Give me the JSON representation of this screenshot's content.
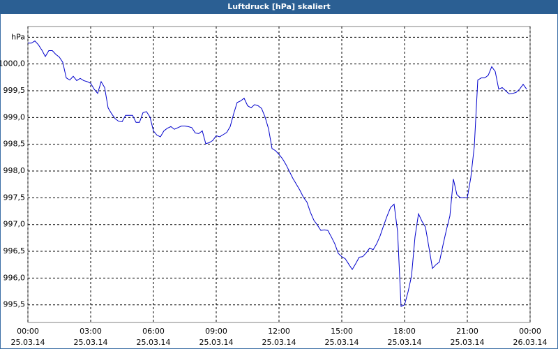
{
  "chart_data": {
    "type": "line",
    "title": "Luftdruck [hPa] skaliert",
    "color": "#0000cc",
    "grid": true,
    "x": [
      0,
      10,
      20,
      30,
      40,
      50,
      60,
      70,
      80,
      90,
      100,
      110,
      120,
      130,
      140,
      150,
      160,
      170,
      180,
      190,
      200,
      210,
      220,
      230,
      240,
      250,
      260,
      270,
      280,
      290,
      300,
      310,
      320,
      330,
      340,
      350,
      360,
      370,
      380,
      390,
      400,
      410,
      420,
      430,
      440,
      450,
      460,
      470,
      480,
      490,
      500,
      510,
      520,
      530,
      540,
      550,
      560,
      570,
      580,
      590,
      600,
      610,
      620,
      630,
      640,
      650,
      660,
      670,
      680,
      690,
      700,
      710,
      720,
      730,
      740,
      750,
      760,
      770,
      780,
      790,
      800,
      810,
      820,
      830,
      840,
      850,
      860,
      870,
      880,
      890,
      900,
      910,
      920,
      930,
      940,
      950,
      960,
      970,
      980,
      990,
      1000,
      1010,
      1020,
      1030,
      1040,
      1050,
      1060,
      1070,
      1080,
      1090,
      1100,
      1110,
      1120,
      1130,
      1140,
      1150,
      1160,
      1170,
      1180,
      1190,
      1200,
      1210,
      1220,
      1230,
      1240,
      1250,
      1260,
      1270,
      1280,
      1290,
      1300,
      1310,
      1320,
      1330,
      1340,
      1350,
      1360,
      1370,
      1380,
      1390,
      1400,
      1410,
      1420,
      1430
    ],
    "values": [
      1000.39,
      1000.39,
      1000.43,
      1000.36,
      1000.26,
      1000.14,
      1000.25,
      1000.25,
      1000.18,
      1000.13,
      1000.03,
      999.74,
      999.7,
      999.77,
      999.69,
      999.73,
      999.69,
      999.67,
      999.64,
      999.53,
      999.45,
      999.67,
      999.56,
      999.18,
      999.07,
      998.98,
      998.93,
      998.92,
      999.04,
      999.04,
      999.04,
      998.91,
      998.91,
      999.09,
      999.11,
      999.01,
      998.75,
      998.67,
      998.64,
      998.75,
      998.8,
      998.83,
      998.78,
      998.81,
      998.84,
      998.84,
      998.83,
      998.81,
      998.71,
      998.7,
      998.75,
      998.51,
      998.53,
      998.57,
      998.66,
      998.64,
      998.68,
      998.72,
      998.83,
      999.07,
      999.28,
      999.31,
      999.36,
      999.22,
      999.18,
      999.24,
      999.22,
      999.17,
      999.01,
      998.79,
      998.42,
      998.38,
      998.31,
      998.23,
      998.12,
      997.99,
      997.86,
      997.75,
      997.64,
      997.51,
      997.42,
      997.23,
      997.08,
      996.99,
      996.89,
      996.9,
      996.89,
      996.77,
      996.64,
      996.46,
      996.4,
      996.36,
      996.26,
      996.16,
      996.27,
      996.39,
      996.4,
      996.47,
      996.56,
      996.53,
      996.64,
      996.79,
      996.98,
      997.16,
      997.32,
      997.38,
      996.87,
      995.47,
      995.5,
      995.74,
      996.04,
      996.77,
      997.2,
      997.06,
      996.95,
      996.57,
      996.18,
      996.25,
      996.3,
      996.61,
      996.9,
      997.16,
      997.85,
      997.56,
      997.5,
      997.5,
      997.5,
      997.88,
      998.46,
      999.7,
      999.74,
      999.74,
      999.79,
      999.95,
      999.86,
      999.53,
      999.56,
      999.5,
      999.44,
      999.45,
      999.47,
      999.53,
      999.62,
      999.53
    ],
    "xlim": [
      0,
      1440
    ],
    "xticks": [
      {
        "value": 0,
        "label": "00:00",
        "date": "25.03.14"
      },
      {
        "value": 180,
        "label": "03:00",
        "date": "25.03.14"
      },
      {
        "value": 360,
        "label": "06:00",
        "date": "25.03.14"
      },
      {
        "value": 540,
        "label": "09:00",
        "date": "25.03.14"
      },
      {
        "value": 720,
        "label": "12:00",
        "date": "25.03.14"
      },
      {
        "value": 900,
        "label": "15:00",
        "date": "25.03.14"
      },
      {
        "value": 1080,
        "label": "18:00",
        "date": "25.03.14"
      },
      {
        "value": 1260,
        "label": "21:00",
        "date": "25.03.14"
      },
      {
        "value": 1440,
        "label": "00:00",
        "date": "26.03.14"
      }
    ],
    "ylim": [
      995.17,
      1000.7
    ],
    "yticks": [
      {
        "value": 995.5,
        "label": "995,5"
      },
      {
        "value": 996,
        "label": "996,0"
      },
      {
        "value": 996.5,
        "label": "996,5"
      },
      {
        "value": 997,
        "label": "997,0"
      },
      {
        "value": 997.5,
        "label": "997,5"
      },
      {
        "value": 998,
        "label": "998,0"
      },
      {
        "value": 998.5,
        "label": "998,5"
      },
      {
        "value": 999,
        "label": "999,0"
      },
      {
        "value": 999.5,
        "label": "999,5"
      },
      {
        "value": 1000,
        "label": "1000,0"
      },
      {
        "value": 1000.5,
        "label": "hPa"
      }
    ]
  }
}
